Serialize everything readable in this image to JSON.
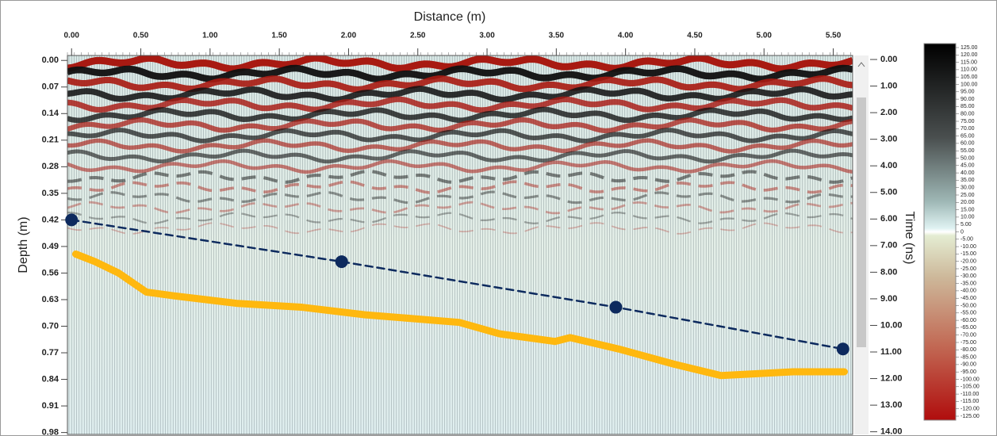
{
  "chart_data": {
    "type": "radargram",
    "xlabel": "Distance (m)",
    "ylabel": "Depth (m)",
    "y2label": "Time (ns)",
    "xlim": [
      -0.03,
      5.64
    ],
    "xticks": [
      {
        "value": 0,
        "label": "0.00"
      },
      {
        "value": 0.5,
        "label": "0.50"
      },
      {
        "value": 1,
        "label": "1.00"
      },
      {
        "value": 1.5,
        "label": "1.50"
      },
      {
        "value": 2,
        "label": "2.00"
      },
      {
        "value": 2.5,
        "label": "2.50"
      },
      {
        "value": 3,
        "label": "3.00"
      },
      {
        "value": 3.5,
        "label": "3.50"
      },
      {
        "value": 4,
        "label": "4.00"
      },
      {
        "value": 4.5,
        "label": "4.50"
      },
      {
        "value": 5,
        "label": "5.00"
      },
      {
        "value": 5.5,
        "label": "5.50"
      }
    ],
    "ylim": [
      -0.013,
      0.985
    ],
    "y_inverted": true,
    "yticks": [
      {
        "value": 0,
        "label": "0.00"
      },
      {
        "value": 0.07,
        "label": "0.07"
      },
      {
        "value": 0.14,
        "label": "0.14"
      },
      {
        "value": 0.21,
        "label": "0.21"
      },
      {
        "value": 0.28,
        "label": "0.28"
      },
      {
        "value": 0.35,
        "label": "0.35"
      },
      {
        "value": 0.42,
        "label": "0.42"
      },
      {
        "value": 0.49,
        "label": "0.49"
      },
      {
        "value": 0.56,
        "label": "0.56"
      },
      {
        "value": 0.63,
        "label": "0.63"
      },
      {
        "value": 0.7,
        "label": "0.70"
      },
      {
        "value": 0.77,
        "label": "0.77"
      },
      {
        "value": 0.84,
        "label": "0.84"
      },
      {
        "value": 0.91,
        "label": "0.91"
      },
      {
        "value": 0.98,
        "label": "0.98"
      }
    ],
    "y2lim": [
      -0.15,
      14.1
    ],
    "y2ticks": [
      {
        "value": 0,
        "label": "0.00"
      },
      {
        "value": 1,
        "label": "1.00"
      },
      {
        "value": 2,
        "label": "2.00"
      },
      {
        "value": 3,
        "label": "3.00"
      },
      {
        "value": 4,
        "label": "4.00"
      },
      {
        "value": 5,
        "label": "5.00"
      },
      {
        "value": 6,
        "label": "6.00"
      },
      {
        "value": 7,
        "label": "7.00"
      },
      {
        "value": 8,
        "label": "8.00"
      },
      {
        "value": 9,
        "label": "9.00"
      },
      {
        "value": 10,
        "label": "10.00"
      },
      {
        "value": 11,
        "label": "11.00"
      },
      {
        "value": 12,
        "label": "12.00"
      },
      {
        "value": 13,
        "label": "13.00"
      },
      {
        "value": 14,
        "label": "14.00"
      }
    ],
    "colorbar": {
      "lim": [
        -125,
        125
      ],
      "ticks": [
        {
          "value": 125,
          "label": "125.00"
        },
        {
          "value": 120,
          "label": "120.00"
        },
        {
          "value": 115,
          "label": "115.00"
        },
        {
          "value": 110,
          "label": "110.00"
        },
        {
          "value": 105,
          "label": "105.00"
        },
        {
          "value": 100,
          "label": "100.00"
        },
        {
          "value": 95,
          "label": "95.00"
        },
        {
          "value": 90,
          "label": "90.00"
        },
        {
          "value": 85,
          "label": "85.00"
        },
        {
          "value": 80,
          "label": "80.00"
        },
        {
          "value": 75,
          "label": "75.00"
        },
        {
          "value": 70,
          "label": "70.00"
        },
        {
          "value": 65,
          "label": "65.00"
        },
        {
          "value": 60,
          "label": "60.00"
        },
        {
          "value": 55,
          "label": "55.00"
        },
        {
          "value": 50,
          "label": "50.00"
        },
        {
          "value": 45,
          "label": "45.00"
        },
        {
          "value": 40,
          "label": "40.00"
        },
        {
          "value": 35,
          "label": "35.00"
        },
        {
          "value": 30,
          "label": "30.00"
        },
        {
          "value": 25,
          "label": "25.00"
        },
        {
          "value": 20,
          "label": "20.00"
        },
        {
          "value": 15,
          "label": "15.00"
        },
        {
          "value": 10,
          "label": "10.00"
        },
        {
          "value": 5,
          "label": "5.00"
        },
        0,
        {
          "value": -5,
          "label": "-5.00"
        },
        {
          "value": -10,
          "label": "-10.00"
        },
        {
          "value": -15,
          "label": "-15.00"
        },
        {
          "value": -20,
          "label": "-20.00"
        },
        {
          "value": -25,
          "label": "-25.00"
        },
        {
          "value": -30,
          "label": "-30.00"
        },
        {
          "value": -35,
          "label": "-35.00"
        },
        {
          "value": -40,
          "label": "-40.00"
        },
        {
          "value": -45,
          "label": "-45.00"
        },
        {
          "value": -50,
          "label": "-50.00"
        },
        {
          "value": -55,
          "label": "-55.00"
        },
        {
          "value": -60,
          "label": "-60.00"
        },
        {
          "value": -65,
          "label": "-65.00"
        },
        {
          "value": -70,
          "label": "-70.00"
        },
        {
          "value": -75,
          "label": "-75.00"
        },
        {
          "value": -80,
          "label": "-80.00"
        },
        {
          "value": -85,
          "label": "-85.00"
        },
        {
          "value": -90,
          "label": "-90.00"
        },
        {
          "value": -95,
          "label": "-95.00"
        },
        {
          "value": -100,
          "label": "-100.00"
        },
        {
          "value": -105,
          "label": "-105.00"
        },
        {
          "value": -110,
          "label": "-110.00"
        },
        {
          "value": -115,
          "label": "-115.00"
        },
        {
          "value": -120,
          "label": "-120.00"
        },
        {
          "value": -125,
          "label": "-125.00"
        }
      ]
    },
    "series": [
      {
        "color": "#0d2a5e",
        "style": "dashed",
        "marker": true,
        "x": [
          0.0,
          1.95,
          3.93,
          5.57
        ],
        "values": [
          0.42,
          0.53,
          0.65,
          0.76
        ]
      },
      {
        "color": "#ffb80f",
        "style": "solid",
        "marker": false,
        "x": [
          0.03,
          0.17,
          0.34,
          0.54,
          0.74,
          1.2,
          1.66,
          2.12,
          2.46,
          2.8,
          3.09,
          3.49,
          3.6,
          3.95,
          4.35,
          4.69,
          5.21,
          5.58
        ],
        "values": [
          0.51,
          0.53,
          0.56,
          0.61,
          0.62,
          0.64,
          0.65,
          0.67,
          0.68,
          0.69,
          0.72,
          0.74,
          0.73,
          0.76,
          0.8,
          0.83,
          0.82,
          0.82
        ]
      }
    ]
  }
}
